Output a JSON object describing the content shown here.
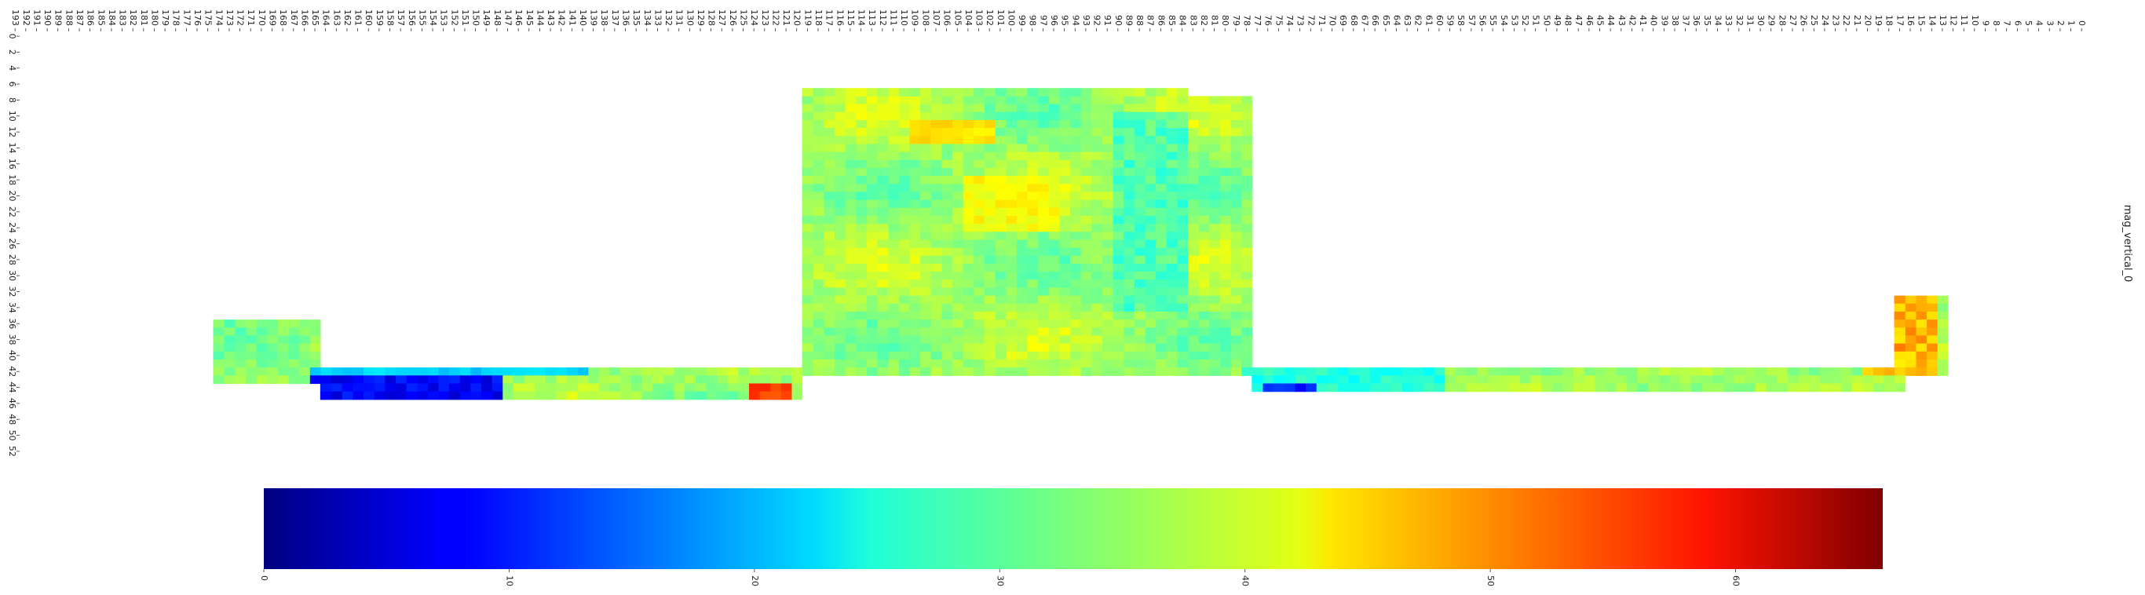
{
  "chart_data": {
    "type": "heatmap",
    "title": "",
    "xlabel": "",
    "ylabel": "mag_vertical_0",
    "x_ticks": [
      0,
      1,
      2,
      3,
      4,
      5,
      6,
      7,
      8,
      9,
      10,
      11,
      12,
      13,
      14,
      15,
      16,
      17,
      18,
      19,
      20,
      21,
      22,
      23,
      24,
      25,
      26,
      27,
      28,
      29,
      30,
      31,
      32,
      33,
      34,
      35,
      36,
      37,
      38,
      39,
      40,
      41,
      42,
      43,
      44,
      45,
      46,
      47,
      48,
      49,
      50,
      51,
      52,
      53,
      54,
      55,
      56,
      57,
      58,
      59,
      60,
      61,
      62,
      63,
      64,
      65,
      66,
      67,
      68,
      69,
      70,
      71,
      72,
      73,
      74,
      75,
      76,
      77,
      78,
      79,
      80,
      81,
      82,
      83,
      84,
      85,
      86,
      87,
      88,
      89,
      90,
      91,
      92,
      93,
      94,
      95,
      96,
      97,
      98,
      99,
      100,
      101,
      102,
      103,
      104,
      105,
      106,
      107,
      108,
      109,
      110,
      111,
      112,
      113,
      114,
      115,
      116,
      117,
      118,
      119,
      120,
      121,
      122,
      123,
      124,
      125,
      126,
      127,
      128,
      129,
      130,
      131,
      132,
      133,
      134,
      135,
      136,
      137,
      138,
      139,
      140,
      141,
      142,
      143,
      144,
      145,
      146,
      147,
      148,
      149,
      150,
      151,
      152,
      153,
      154,
      155,
      156,
      157,
      158,
      159,
      160,
      161,
      162,
      163,
      164,
      165,
      166,
      167,
      168,
      169,
      170,
      171,
      172,
      173,
      174,
      175,
      176,
      177,
      178,
      179,
      180,
      181,
      182,
      183,
      184,
      185,
      186,
      187,
      188,
      189,
      190,
      191,
      192,
      193
    ],
    "y_ticks": [
      0,
      2,
      4,
      6,
      8,
      10,
      12,
      14,
      16,
      18,
      20,
      22,
      24,
      26,
      28,
      30,
      32,
      34,
      36,
      38,
      40,
      42,
      44,
      46,
      48,
      50,
      52
    ],
    "x_range": [
      0,
      193
    ],
    "y_range": [
      0,
      53
    ],
    "colorbar": {
      "colormap": "jet",
      "vmin": 0,
      "vmax": 66,
      "ticks": [
        0,
        10,
        20,
        30,
        40,
        50,
        60
      ],
      "label": "mag_vertical_0"
    },
    "value_summary": "Values mostly 28-42 across the field; low values (5-15) along the lower-right arm near x 150-165 and near x 72-76 at y 44-45; highs (45-58) near x 17-20 y 35-42, x 121-123 y 44-46 and x 80-83 y 44",
    "regions": [
      {
        "x": [
          13,
          18
        ],
        "y": [
          33,
          43
        ],
        "base": 39,
        "note": "right vertical arm, high values"
      },
      {
        "x": [
          78,
          120
        ],
        "y": [
          8,
          43
        ],
        "base": 36,
        "note": "central block"
      },
      {
        "x": [
          100,
          120
        ],
        "y": [
          7,
          9
        ],
        "base": 36,
        "note": "central block top right"
      },
      {
        "x": [
          84,
          120
        ],
        "y": [
          7,
          8
        ],
        "base": 36,
        "note": "central block top step"
      },
      {
        "x": [
          17,
          78
        ],
        "y": [
          42,
          45
        ],
        "base": 33,
        "note": "left bottom strip"
      },
      {
        "x": [
          120,
          165
        ],
        "y": [
          42,
          46
        ],
        "base": 27,
        "note": "right bottom strip, low values"
      },
      {
        "x": [
          165,
          175
        ],
        "y": [
          36,
          44
        ],
        "base": 28,
        "note": "left vertical arm"
      }
    ]
  }
}
